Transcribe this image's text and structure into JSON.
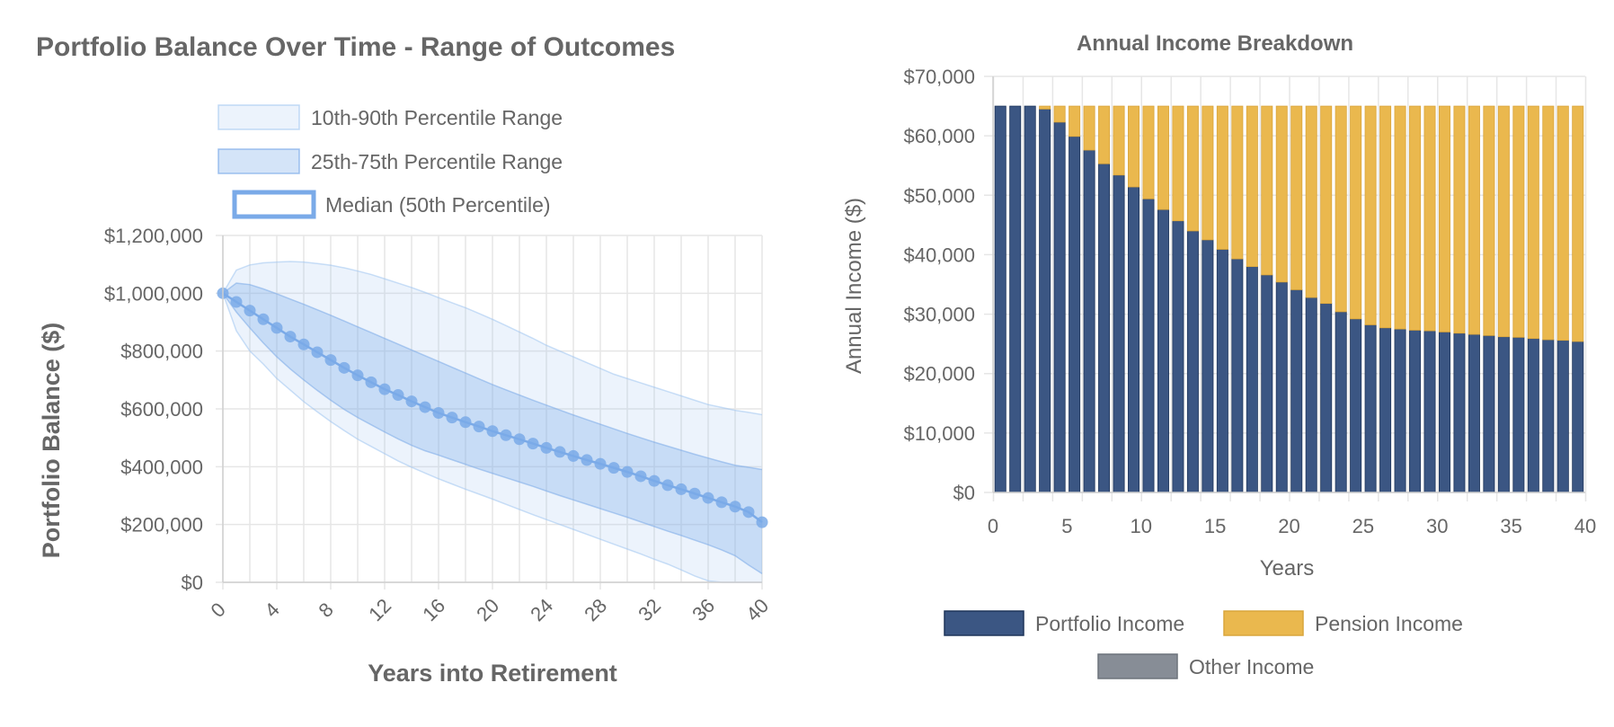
{
  "chart_data": [
    {
      "type": "line",
      "title": "Portfolio Balance Over Time - Range of Outcomes",
      "xlabel": "Years into Retirement",
      "ylabel": "Portfolio Balance ($)",
      "xlim": [
        0,
        40
      ],
      "ylim": [
        0,
        1200000
      ],
      "x_ticks": [
        "0",
        "4",
        "8",
        "12",
        "16",
        "20",
        "24",
        "28",
        "32",
        "36",
        "40"
      ],
      "y_ticks": [
        "$0",
        "$200,000",
        "$400,000",
        "$600,000",
        "$800,000",
        "$1,000,000",
        "$1,200,000"
      ],
      "grid": true,
      "legend_position": "top",
      "x": [
        0,
        1,
        2,
        3,
        4,
        5,
        6,
        7,
        8,
        9,
        10,
        11,
        12,
        13,
        14,
        15,
        16,
        17,
        18,
        19,
        20,
        21,
        22,
        23,
        24,
        25,
        26,
        27,
        28,
        29,
        30,
        31,
        32,
        33,
        34,
        35,
        36,
        37,
        38,
        39,
        40
      ],
      "series": [
        {
          "name": "10th-90th Percentile Range",
          "kind": "band",
          "color": "#9ec5f0",
          "lower": [
            1000000,
            870000,
            800000,
            755000,
            705000,
            665000,
            625000,
            590000,
            556000,
            525000,
            495000,
            470000,
            445000,
            420000,
            398000,
            378000,
            358000,
            340000,
            322000,
            305000,
            288000,
            270000,
            252000,
            234000,
            217000,
            200000,
            183000,
            166000,
            149000,
            132000,
            115000,
            98000,
            80000,
            63000,
            43000,
            22000,
            5000,
            0,
            0,
            0,
            0
          ],
          "upper": [
            1000000,
            1080000,
            1098000,
            1105000,
            1108000,
            1110000,
            1108000,
            1103000,
            1097000,
            1088000,
            1077000,
            1065000,
            1050000,
            1035000,
            1020000,
            1003000,
            985000,
            967000,
            950000,
            930000,
            910000,
            888000,
            866000,
            844000,
            820000,
            800000,
            780000,
            760000,
            740000,
            720000,
            705000,
            690000,
            675000,
            660000,
            645000,
            630000,
            615000,
            605000,
            595000,
            588000,
            580000
          ]
        },
        {
          "name": "25th-75th Percentile Range",
          "kind": "band",
          "color": "#7aaae8",
          "lower": [
            1000000,
            935000,
            880000,
            828000,
            780000,
            738000,
            700000,
            664000,
            630000,
            598000,
            570000,
            545000,
            520000,
            496000,
            474000,
            455000,
            440000,
            424000,
            408000,
            392000,
            377000,
            362000,
            347000,
            332000,
            316000,
            300000,
            285000,
            270000,
            255000,
            240000,
            225000,
            209000,
            193000,
            177000,
            162000,
            146000,
            130000,
            112000,
            92000,
            60000,
            30000
          ],
          "upper": [
            1000000,
            1035000,
            1030000,
            1015000,
            998000,
            980000,
            962000,
            943000,
            924000,
            904000,
            884000,
            864000,
            844000,
            824000,
            804000,
            784000,
            764000,
            744000,
            724000,
            704000,
            684000,
            666000,
            648000,
            630000,
            613000,
            596000,
            579000,
            563000,
            547000,
            531000,
            515000,
            500000,
            485000,
            471000,
            457000,
            443000,
            430000,
            417000,
            405000,
            398000,
            390000
          ]
        },
        {
          "name": "Median (50th Percentile)",
          "kind": "line",
          "color": "#7aaae8",
          "values": [
            1000000,
            970000,
            940000,
            910000,
            880000,
            850000,
            823000,
            796000,
            769000,
            742000,
            716000,
            692000,
            668000,
            648000,
            626000,
            606000,
            586000,
            570000,
            554000,
            539000,
            523000,
            509000,
            495000,
            480000,
            465000,
            451000,
            437000,
            423000,
            410000,
            396000,
            382000,
            367000,
            351000,
            336000,
            322000,
            307000,
            292000,
            277000,
            262000,
            243000,
            208000
          ]
        }
      ]
    },
    {
      "type": "bar",
      "stacked": true,
      "title": "Annual Income Breakdown",
      "xlabel": "Years",
      "ylabel": "Annual Income ($)",
      "xlim": [
        0,
        40
      ],
      "ylim": [
        0,
        70000
      ],
      "x_ticks": [
        "0",
        "5",
        "10",
        "15",
        "20",
        "25",
        "30",
        "35",
        "40"
      ],
      "y_ticks": [
        "$0",
        "$10,000",
        "$20,000",
        "$30,000",
        "$40,000",
        "$50,000",
        "$60,000",
        "$70,000"
      ],
      "grid": true,
      "legend_position": "bottom",
      "categories": [
        1,
        2,
        3,
        4,
        5,
        6,
        7,
        8,
        9,
        10,
        11,
        12,
        13,
        14,
        15,
        16,
        17,
        18,
        19,
        20,
        21,
        22,
        23,
        24,
        25,
        26,
        27,
        28,
        29,
        30,
        31,
        32,
        33,
        34,
        35,
        36,
        37,
        38,
        39,
        40
      ],
      "series": [
        {
          "name": "Portfolio Income",
          "color": "#3b5683",
          "values": [
            65000,
            65000,
            65000,
            64500,
            62300,
            59900,
            57600,
            55300,
            53400,
            51400,
            49400,
            47600,
            45700,
            44000,
            42500,
            40900,
            39300,
            38000,
            36600,
            35400,
            34100,
            32800,
            31800,
            30400,
            29200,
            28200,
            27700,
            27500,
            27300,
            27200,
            27000,
            26800,
            26600,
            26400,
            26200,
            26100,
            25900,
            25700,
            25600,
            25400
          ]
        },
        {
          "name": "Pension Income",
          "color": "#eab84e",
          "values": [
            0,
            0,
            0,
            500,
            2700,
            5100,
            7400,
            9700,
            11600,
            13600,
            15600,
            17400,
            19300,
            21000,
            22500,
            24100,
            25700,
            27000,
            28400,
            29600,
            30900,
            32200,
            33200,
            34600,
            35800,
            36800,
            37300,
            37500,
            37700,
            37800,
            38000,
            38200,
            38400,
            38600,
            38800,
            38900,
            39100,
            39300,
            39400,
            39600
          ]
        },
        {
          "name": "Other Income",
          "color": "#878d96",
          "values": [
            0,
            0,
            0,
            0,
            0,
            0,
            0,
            0,
            0,
            0,
            0,
            0,
            0,
            0,
            0,
            0,
            0,
            0,
            0,
            0,
            0,
            0,
            0,
            0,
            0,
            0,
            0,
            0,
            0,
            0,
            0,
            0,
            0,
            0,
            0,
            0,
            0,
            0,
            0,
            0
          ]
        }
      ]
    }
  ]
}
